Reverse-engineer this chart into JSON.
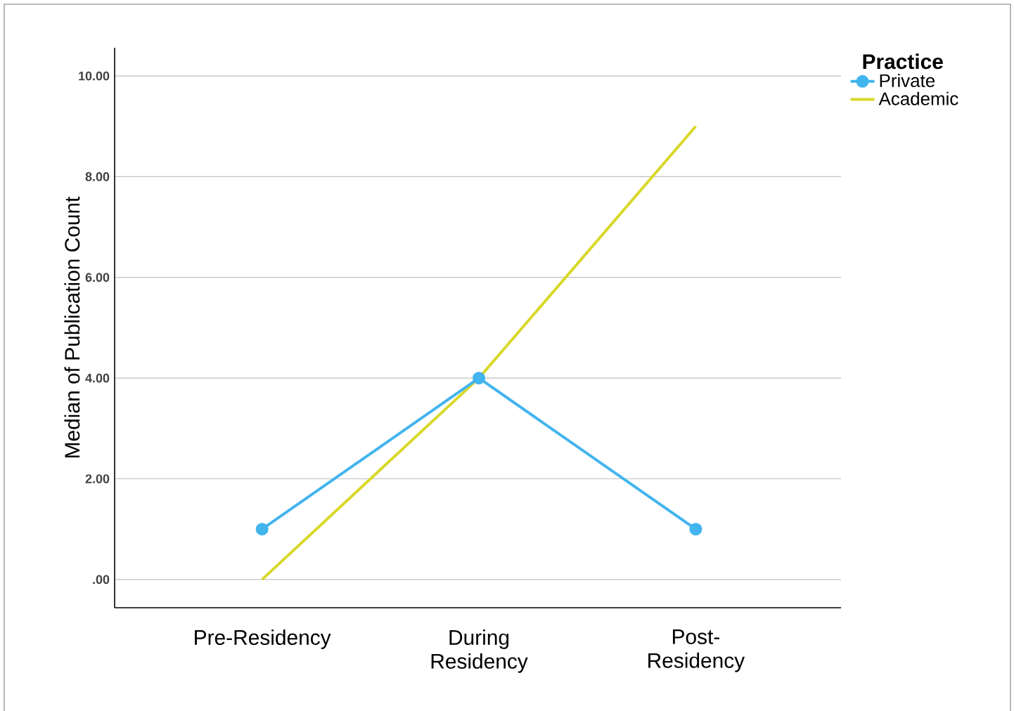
{
  "chart_data": {
    "type": "line",
    "categories": [
      "Pre-Residency",
      "During Residency",
      "Post-Residency"
    ],
    "ylabel": "Median of Publication Count",
    "legend_title": "Practice",
    "series": [
      {
        "name": "Private",
        "color": "#42b4ee",
        "values": [
          1,
          4,
          1
        ],
        "marker": "circle"
      },
      {
        "name": "Academic",
        "color": "#d9d82a",
        "values": [
          0,
          4,
          9
        ],
        "marker": "none"
      }
    ],
    "ylim": [
      -0.56,
      10.56
    ],
    "yticks": [
      {
        "value": 0,
        "label": ".00"
      },
      {
        "value": 2,
        "label": "2.00"
      },
      {
        "value": 4,
        "label": "4.00"
      },
      {
        "value": 6,
        "label": "6.00"
      },
      {
        "value": 8,
        "label": "8.00"
      },
      {
        "value": 10,
        "label": "10.00"
      }
    ],
    "grid": "y",
    "legend": "top right",
    "line_style": "solid"
  }
}
